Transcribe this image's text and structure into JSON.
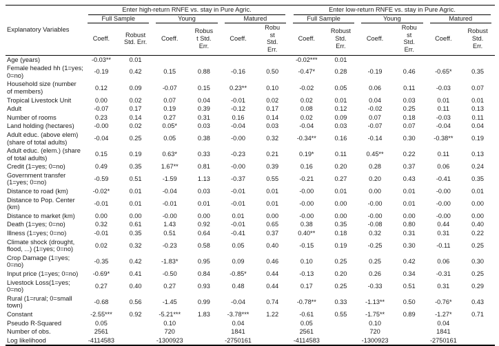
{
  "page": {
    "background": "#ffffff",
    "text_color": "#1a1a1a",
    "rule_color": "#000000"
  },
  "table": {
    "corner_label": "Explanatory Variables",
    "panels": [
      {
        "title": "Enter high-return RNFE vs. stay in Pure Agric.",
        "groups": [
          "Full Sample",
          "Young",
          "Matured"
        ]
      },
      {
        "title": "Enter low-return RNFE vs. stay in Pure Agric.",
        "groups": [
          "Full Sample",
          "Young",
          "Matured"
        ]
      }
    ],
    "col_headers": [
      "Coeff.",
      "Robust\nStd. Err.",
      "Coeff.",
      "Robus\nt Std.\nErr.",
      "Coeff.",
      "Robu\nst\nStd.\nErr.",
      "Coeff.",
      "Robust\nStd.\nErr.",
      "Coeff.",
      "Robu\nst\nStd.\nErr.",
      "Coeff.",
      "Robust\nStd.\nErr."
    ],
    "rows": [
      {
        "label": "Age (years)",
        "values": [
          "-0.03**",
          "0.01",
          "",
          "",
          "",
          "",
          "-0.02***",
          "0.01",
          "",
          "",
          "",
          ""
        ]
      },
      {
        "label": "Female headed hh (1=yes;\n0=no)",
        "values": [
          "-0.19",
          "0.42",
          "0.15",
          "0.88",
          "-0.16",
          "0.50",
          "-0.47*",
          "0.28",
          "-0.19",
          "0.46",
          "-0.65*",
          "0.35"
        ]
      },
      {
        "label": "Household size (number\nof members)",
        "values": [
          "0.12",
          "0.09",
          "-0.07",
          "0.15",
          "0.23**",
          "0.10",
          "-0.02",
          "0.05",
          "0.06",
          "0.11",
          "-0.03",
          "0.07"
        ]
      },
      {
        "label": "Tropical Livestock Unit",
        "values": [
          "0.00",
          "0.02",
          "0.07",
          "0.04",
          "-0.01",
          "0.02",
          "0.02",
          "0.01",
          "0.04",
          "0.03",
          "0.01",
          "0.01"
        ]
      },
      {
        "label": "Adult",
        "values": [
          "-0.07",
          "0.17",
          "0.19",
          "0.39",
          "-0.12",
          "0.17",
          "0.08",
          "0.12",
          "-0.02",
          "0.25",
          "0.11",
          "0.13"
        ]
      },
      {
        "label": "Number of rooms",
        "values": [
          "0.23",
          "0.14",
          "0.27",
          "0.31",
          "0.16",
          "0.14",
          "0.02",
          "0.09",
          "0.07",
          "0.18",
          "-0.03",
          "0.11"
        ]
      },
      {
        "label": "Land holding (hectares)",
        "values": [
          "-0.00",
          "0.02",
          "0.05*",
          "0.03",
          "-0.04",
          "0.03",
          "-0.04",
          "0.03",
          "-0.07",
          "0.07",
          "-0.04",
          "0.04"
        ]
      },
      {
        "label": "Adult educ. (above elem)\n(share of total adults)",
        "values": [
          "-0.04",
          "0.25",
          "0.05",
          "0.38",
          "-0.00",
          "0.32",
          "-0.34**",
          "0.16",
          "-0.14",
          "0.30",
          "-0.38**",
          "0.19"
        ]
      },
      {
        "label": "Adult educ. (elem.) (share\nof total adults)",
        "values": [
          "0.15",
          "0.19",
          "0.63*",
          "0.33",
          "-0.23",
          "0.21",
          "0.19*",
          "0.11",
          "0.45**",
          "0.22",
          "0.11",
          "0.13"
        ]
      },
      {
        "label": "Credit (1=yes; 0=no)",
        "values": [
          "0.49",
          "0.35",
          "1.67**",
          "0.81",
          "-0.00",
          "0.39",
          "0.16",
          "0.20",
          "0.28",
          "0.37",
          "0.06",
          "0.24"
        ]
      },
      {
        "label": "Government transfer\n(1=yes; 0=no)",
        "values": [
          "-0.59",
          "0.51",
          "-1.59",
          "1.13",
          "-0.37",
          "0.55",
          "-0.21",
          "0.27",
          "0.20",
          "0.43",
          "-0.41",
          "0.35"
        ]
      },
      {
        "label": "Distance to road (km)",
        "values": [
          "-0.02*",
          "0.01",
          "-0.04",
          "0.03",
          "-0.01",
          "0.01",
          "-0.00",
          "0.01",
          "0.00",
          "0.01",
          "-0.00",
          "0.01"
        ]
      },
      {
        "label": "Distance to Pop. Center\n(km)",
        "values": [
          "-0.01",
          "0.01",
          "-0.01",
          "0.01",
          "-0.01",
          "0.01",
          "-0.00",
          "0.00",
          "-0.00",
          "0.01",
          "-0.00",
          "0.00"
        ]
      },
      {
        "label": "Distance to market (km)",
        "values": [
          "0.00",
          "0.00",
          "-0.00",
          "0.00",
          "0.01",
          "0.00",
          "-0.00",
          "0.00",
          "-0.00",
          "0.00",
          "-0.00",
          "0.00"
        ]
      },
      {
        "label": "Death (1=yes; 0=no)",
        "values": [
          "0.32",
          "0.61",
          "1.43",
          "0.92",
          "-0.01",
          "0.65",
          "0.38",
          "0.35",
          "-0.08",
          "0.80",
          "0.44",
          "0.40"
        ]
      },
      {
        "label": "Illness (1=yes; 0=no)",
        "values": [
          "-0.01",
          "0.35",
          "0.51",
          "0.64",
          "-0.41",
          "0.37",
          "0.40**",
          "0.18",
          "0.32",
          "0.31",
          "0.31",
          "0.22"
        ]
      },
      {
        "label": "Climate shock (drought,\nflood, ...) (1=yes; 0=no)",
        "values": [
          "0.02",
          "0.32",
          "-0.23",
          "0.58",
          "0.05",
          "0.40",
          "-0.15",
          "0.19",
          "-0.25",
          "0.30",
          "-0.11",
          "0.25"
        ]
      },
      {
        "label": "Crop Damage (1=yes;\n0=no)",
        "values": [
          "-0.35",
          "0.42",
          "-1.83*",
          "0.95",
          "0.09",
          "0.46",
          "0.10",
          "0.25",
          "0.25",
          "0.42",
          "0.06",
          "0.30"
        ]
      },
      {
        "label": "Input price (1=yes; 0=no)",
        "values": [
          "-0.69*",
          "0.41",
          "-0.50",
          "0.84",
          "-0.85*",
          "0.44",
          "-0.13",
          "0.20",
          "0.26",
          "0.34",
          "-0.31",
          "0.25"
        ]
      },
      {
        "label": "Livestock Loss(1=yes;\n0=no)",
        "values": [
          "0.27",
          "0.40",
          "0.27",
          "0.93",
          "0.48",
          "0.44",
          "0.17",
          "0.25",
          "-0.33",
          "0.51",
          "0.31",
          "0.29"
        ]
      },
      {
        "label": "Rural (1=rural; 0=small\ntown)",
        "values": [
          "-0.68",
          "0.56",
          "-1.45",
          "0.99",
          "-0.04",
          "0.74",
          "-0.78**",
          "0.33",
          "-1.13**",
          "0.50",
          "-0.76*",
          "0.43"
        ]
      },
      {
        "label": "Constant",
        "values": [
          "-2.55***",
          "0.92",
          "-5.21***",
          "1.83",
          "-3.78***",
          "1.22",
          "-0.61",
          "0.55",
          "-1.75**",
          "0.89",
          "-1.27*",
          "0.71"
        ]
      },
      {
        "label": "Pseudo R-Squared",
        "values": [
          "0.05",
          "",
          "0.10",
          "",
          "0.04",
          "",
          "0.05",
          "",
          "0.10",
          "",
          "0.04",
          ""
        ]
      },
      {
        "label": "Number of obs.",
        "values": [
          "2561",
          "",
          "720",
          "",
          "1841",
          "",
          "2561",
          "",
          "720",
          "",
          "1841",
          ""
        ]
      },
      {
        "label": "Log likelihood",
        "values": [
          "-4114583",
          "",
          "-1300923",
          "",
          "-2750161",
          "",
          "-4114583",
          "",
          "-1300923",
          "",
          "-2750161",
          ""
        ]
      }
    ]
  }
}
